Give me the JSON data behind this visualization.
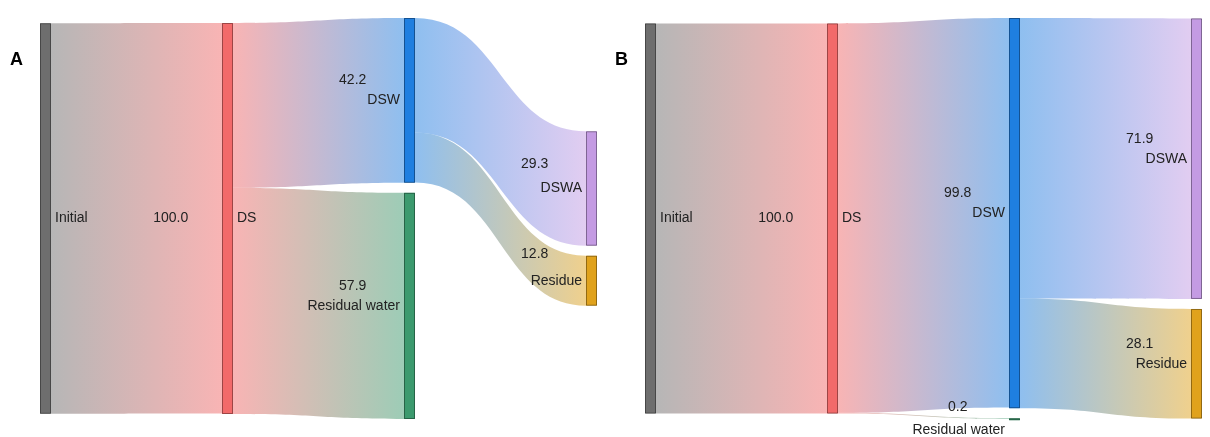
{
  "chart_data": [
    {
      "type": "other",
      "title": "A",
      "categories": [
        "Initial",
        "DS",
        "DSW",
        "Residual water",
        "DSWA",
        "Residue"
      ],
      "colors": [
        "#6e6e6e",
        "#f26a6a",
        "#1f7fe0",
        "#3c9a6e",
        "#c49be3",
        "#e0a21c"
      ],
      "series": [
        {
          "values": [
            null,
            100.0,
            null,
            null,
            null,
            null
          ],
          "value_labels": [
            null,
            "100.0",
            null,
            null,
            null,
            null
          ]
        },
        {
          "values": [
            null,
            null,
            42.2,
            57.9,
            null,
            null
          ],
          "value_labels": [
            null,
            null,
            "42.2",
            "57.9",
            null,
            null
          ]
        },
        {
          "values": [
            null,
            null,
            null,
            null,
            29.3,
            12.8
          ],
          "value_labels": [
            null,
            null,
            null,
            null,
            "29.3",
            "12.8"
          ]
        }
      ]
    },
    {
      "type": "other",
      "title": "B",
      "categories": [
        "Initial",
        "DS",
        "DSW",
        "Residual water",
        "DSWA",
        "Residue"
      ],
      "colors": [
        "#6e6e6e",
        "#f26a6a",
        "#1f7fe0",
        "#3c9a6e",
        "#c49be3",
        "#e0a21c"
      ],
      "series": [
        {
          "values": [
            null,
            100.0,
            null,
            null,
            null,
            null
          ],
          "value_labels": [
            null,
            "100.0",
            null,
            null,
            null,
            null
          ]
        },
        {
          "values": [
            null,
            null,
            99.8,
            0.2,
            null,
            null
          ],
          "value_labels": [
            null,
            null,
            "99.8",
            "0.2",
            null,
            null
          ]
        },
        {
          "values": [
            null,
            null,
            null,
            null,
            71.9,
            28.1
          ],
          "value_labels": [
            null,
            null,
            null,
            null,
            "71.9",
            "28.1"
          ]
        }
      ]
    }
  ]
}
